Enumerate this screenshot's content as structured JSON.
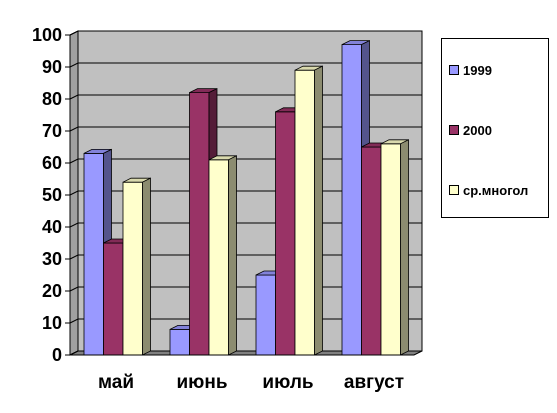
{
  "chart_data": {
    "type": "bar",
    "categories": [
      "май",
      "июнь",
      "июль",
      "август"
    ],
    "series": [
      {
        "name": "1999",
        "values": [
          63,
          8,
          25,
          97
        ],
        "color": "#9999ff"
      },
      {
        "name": "2000",
        "values": [
          35,
          82,
          76,
          65
        ],
        "color": "#993366"
      },
      {
        "name": "ср.многол",
        "values": [
          54,
          61,
          89,
          66
        ],
        "color": "#ffffcc"
      }
    ],
    "y_ticks": [
      "0",
      "10",
      "20",
      "30",
      "40",
      "50",
      "60",
      "70",
      "80",
      "90",
      "100"
    ],
    "ylim": [
      0,
      100
    ],
    "grid": true,
    "legend_position": "right",
    "style": "3d-clustered-column",
    "wall_color": "#c0c0c0"
  }
}
